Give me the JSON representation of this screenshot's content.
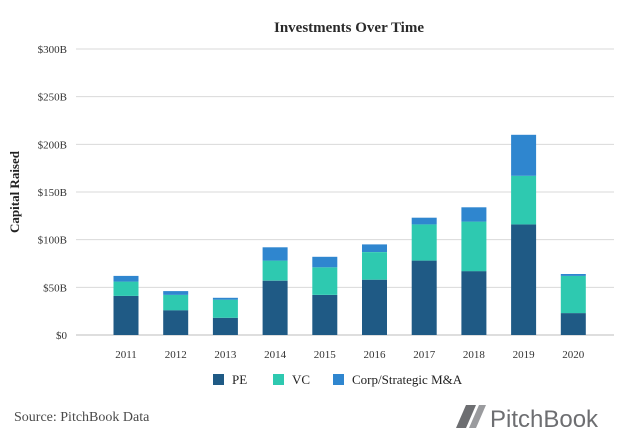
{
  "chart_data": {
    "type": "bar",
    "stacked": true,
    "title": "Investments Over Time",
    "xlabel": "",
    "ylabel": "Capital Raised",
    "categories": [
      "2011",
      "2012",
      "2013",
      "2014",
      "2015",
      "2016",
      "2017",
      "2018",
      "2019",
      "2020"
    ],
    "ylim": [
      0,
      300
    ],
    "yticks": [
      "$0",
      "$50B",
      "$100B",
      "$150B",
      "$200B",
      "$250B",
      "$300B"
    ],
    "ytick_values": [
      0,
      50,
      100,
      150,
      200,
      250,
      300
    ],
    "grid": true,
    "legend_position": "bottom",
    "series": [
      {
        "name": "PE",
        "color": "#1f5a85",
        "values": [
          41,
          26,
          18,
          57,
          42,
          58,
          78,
          67,
          116,
          23
        ]
      },
      {
        "name": "VC",
        "color": "#2ec9b0",
        "values": [
          15,
          16,
          19,
          21,
          29,
          29,
          38,
          52,
          51,
          39
        ]
      },
      {
        "name": "Corp/Strategic M&A",
        "color": "#2f86cf",
        "values": [
          6,
          4,
          2,
          14,
          11,
          8,
          7,
          15,
          43,
          2
        ]
      }
    ]
  },
  "footer": {
    "source": "Source: PitchBook Data",
    "brand_name": "PitchBook",
    "brand_color": "#6d6e71"
  }
}
